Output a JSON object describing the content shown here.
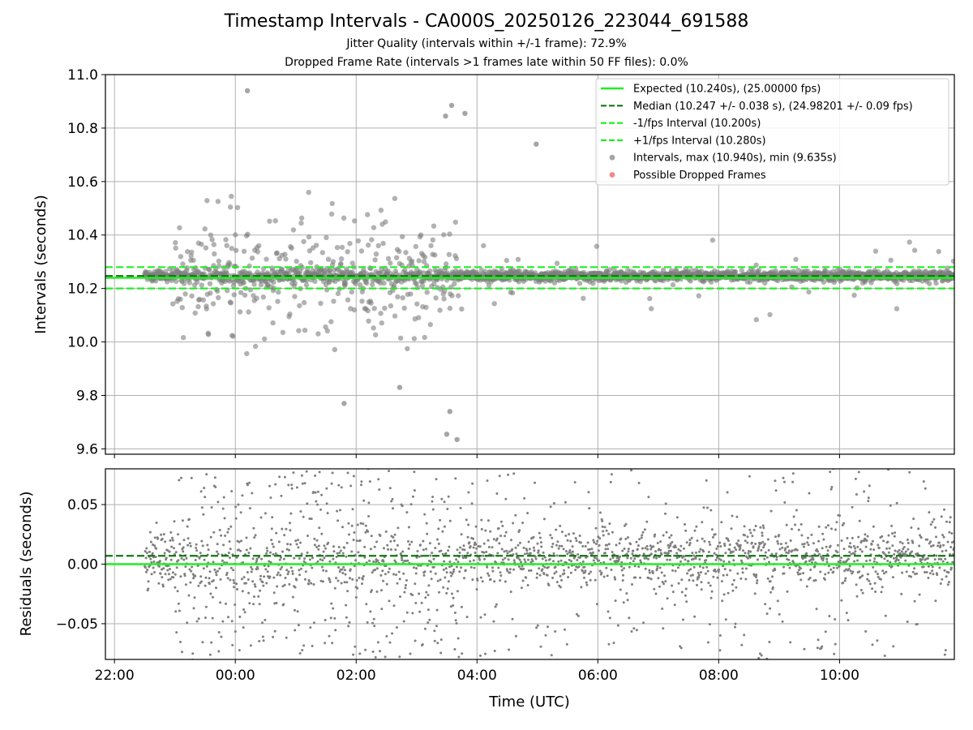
{
  "chart_data": {
    "type": "scatter",
    "title": "Timestamp Intervals - CA000S_20250126_223044_691588",
    "subtitles": [
      "Jitter Quality (intervals within +/-1 frame): 72.9%",
      "Dropped Frame Rate (intervals >1 frames late within 50 FF files): 0.0%"
    ],
    "xlabel": "Time (UTC)",
    "x_ticks": [
      "22:00",
      "00:00",
      "02:00",
      "04:00",
      "06:00",
      "08:00",
      "10:00"
    ],
    "x_range_hours": [
      21.85,
      35.9
    ],
    "data_span_hours": [
      22.5,
      35.9
    ],
    "colors": {
      "expected": "#22ee22",
      "median": "#117711",
      "interval_band": "#22ee22",
      "points": "#7f7f7f",
      "dropped": "#ee5555",
      "grid": "#b0b0b0"
    },
    "top_panel": {
      "ylabel": "Intervals (seconds)",
      "ylim": [
        9.58,
        11.0
      ],
      "y_ticks": [
        "9.6",
        "9.8",
        "10.0",
        "10.2",
        "10.4",
        "10.6",
        "10.8",
        "11.0"
      ],
      "expected": 10.24,
      "median": 10.247,
      "lower": 10.2,
      "upper": 10.28,
      "max": 10.94,
      "min": 9.635,
      "legend_location": "upper-right",
      "legend": [
        {
          "label": "Expected (10.240s), (25.00000 fps)",
          "kind": "line",
          "color": "#22ee22"
        },
        {
          "label": "Median (10.247 +/- 0.038 s), (24.98201 +/- 0.09 fps)",
          "kind": "dash",
          "color": "#117711"
        },
        {
          "label": "-1/fps Interval (10.200s)",
          "kind": "dash",
          "color": "#22ee22"
        },
        {
          "label": "+1/fps Interval (10.280s)",
          "kind": "dash",
          "color": "#22ee22"
        },
        {
          "label": "Intervals, max (10.940s), min (9.635s)",
          "kind": "dot",
          "color": "#7f7f7f"
        },
        {
          "label": "Possible Dropped Frames",
          "kind": "dot",
          "color": "#ee5555"
        }
      ],
      "outliers": [
        {
          "t": 0.2,
          "y": 10.94
        },
        {
          "t": 3.67,
          "y": 9.635
        },
        {
          "t": 3.48,
          "y": 10.845
        },
        {
          "t": 3.58,
          "y": 10.885
        },
        {
          "t": 3.8,
          "y": 10.855
        },
        {
          "t": 3.5,
          "y": 9.655
        },
        {
          "t": 3.55,
          "y": 9.74
        },
        {
          "t": 4.98,
          "y": 10.74
        },
        {
          "t": 2.72,
          "y": 9.83
        },
        {
          "t": 1.8,
          "y": 9.77
        }
      ]
    },
    "bottom_panel": {
      "ylabel": "Residuals (seconds)",
      "ylim": [
        -0.08,
        0.08
      ],
      "y_ticks": [
        "−0.05",
        "0.00",
        "0.05"
      ],
      "expected": 0.0,
      "median": 0.007
    }
  }
}
